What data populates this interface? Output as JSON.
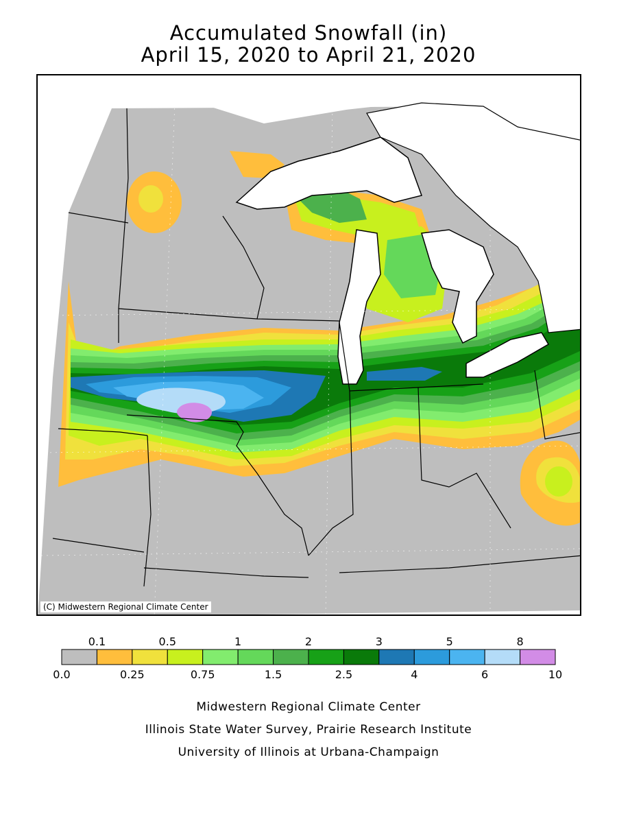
{
  "title_line1": "Accumulated Snowfall (in)",
  "title_line2": "April 15, 2020 to April 21, 2020",
  "copyright": "(C) Midwestern Regional Climate Center",
  "legend": {
    "top_labels": [
      "0.1",
      "0.5",
      "1",
      "2",
      "3",
      "5",
      "8"
    ],
    "bottom_labels": [
      "0.0",
      "0.25",
      "0.75",
      "1.5",
      "2.5",
      "4",
      "6",
      "10"
    ],
    "colors": [
      "#bebebe",
      "#ffbe3c",
      "#f0e13c",
      "#c8f01e",
      "#82ec6e",
      "#64d85a",
      "#4cb14c",
      "#17a117",
      "#0a7a0a",
      "#1e78b4",
      "#2c9bdc",
      "#4bb4f0",
      "#b4dcf8",
      "#d28ce6"
    ]
  },
  "credits": [
    "Midwestern Regional Climate Center",
    "Illinois State Water Survey, Prairie Research Institute",
    "University of Illinois at Urbana-Champaign"
  ]
}
